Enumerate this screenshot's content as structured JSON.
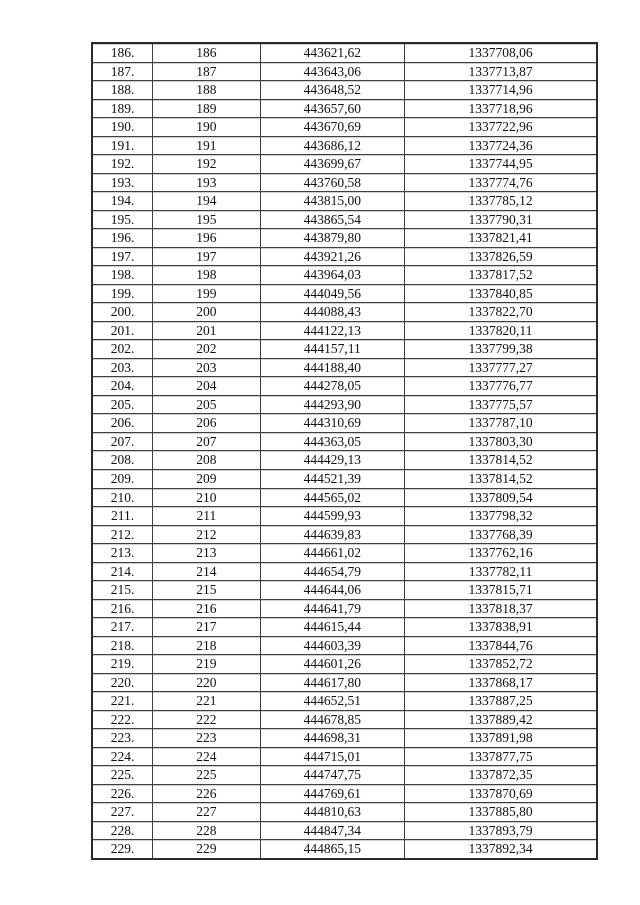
{
  "theme": {
    "background": "#ffffff",
    "text_color": "#111111",
    "border_color": "#3f3f3f"
  },
  "table": {
    "rows": [
      [
        "186.",
        "186",
        "443621,62",
        "1337708,06"
      ],
      [
        "187.",
        "187",
        "443643,06",
        "1337713,87"
      ],
      [
        "188.",
        "188",
        "443648,52",
        "1337714,96"
      ],
      [
        "189.",
        "189",
        "443657,60",
        "1337718,96"
      ],
      [
        "190.",
        "190",
        "443670,69",
        "1337722,96"
      ],
      [
        "191.",
        "191",
        "443686,12",
        "1337724,36"
      ],
      [
        "192.",
        "192",
        "443699,67",
        "1337744,95"
      ],
      [
        "193.",
        "193",
        "443760,58",
        "1337774,76"
      ],
      [
        "194.",
        "194",
        "443815,00",
        "1337785,12"
      ],
      [
        "195.",
        "195",
        "443865,54",
        "1337790,31"
      ],
      [
        "196.",
        "196",
        "443879,80",
        "1337821,41"
      ],
      [
        "197.",
        "197",
        "443921,26",
        "1337826,59"
      ],
      [
        "198.",
        "198",
        "443964,03",
        "1337817,52"
      ],
      [
        "199.",
        "199",
        "444049,56",
        "1337840,85"
      ],
      [
        "200.",
        "200",
        "444088,43",
        "1337822,70"
      ],
      [
        "201.",
        "201",
        "444122,13",
        "1337820,11"
      ],
      [
        "202.",
        "202",
        "444157,11",
        "1337799,38"
      ],
      [
        "203.",
        "203",
        "444188,40",
        "1337777,27"
      ],
      [
        "204.",
        "204",
        "444278,05",
        "1337776,77"
      ],
      [
        "205.",
        "205",
        "444293,90",
        "1337775,57"
      ],
      [
        "206.",
        "206",
        "444310,69",
        "1337787,10"
      ],
      [
        "207.",
        "207",
        "444363,05",
        "1337803,30"
      ],
      [
        "208.",
        "208",
        "444429,13",
        "1337814,52"
      ],
      [
        "209.",
        "209",
        "444521,39",
        "1337814,52"
      ],
      [
        "210.",
        "210",
        "444565,02",
        "1337809,54"
      ],
      [
        "211.",
        "211",
        "444599,93",
        "1337798,32"
      ],
      [
        "212.",
        "212",
        "444639,83",
        "1337768,39"
      ],
      [
        "213.",
        "213",
        "444661,02",
        "1337762,16"
      ],
      [
        "214.",
        "214",
        "444654,79",
        "1337782,11"
      ],
      [
        "215.",
        "215",
        "444644,06",
        "1337815,71"
      ],
      [
        "216.",
        "216",
        "444641,79",
        "1337818,37"
      ],
      [
        "217.",
        "217",
        "444615,44",
        "1337838,91"
      ],
      [
        "218.",
        "218",
        "444603,39",
        "1337844,76"
      ],
      [
        "219.",
        "219",
        "444601,26",
        "1337852,72"
      ],
      [
        "220.",
        "220",
        "444617,80",
        "1337868,17"
      ],
      [
        "221.",
        "221",
        "444652,51",
        "1337887,25"
      ],
      [
        "222.",
        "222",
        "444678,85",
        "1337889,42"
      ],
      [
        "223.",
        "223",
        "444698,31",
        "1337891,98"
      ],
      [
        "224.",
        "224",
        "444715,01",
        "1337877,75"
      ],
      [
        "225.",
        "225",
        "444747,75",
        "1337872,35"
      ],
      [
        "226.",
        "226",
        "444769,61",
        "1337870,69"
      ],
      [
        "227.",
        "227",
        "444810,63",
        "1337885,80"
      ],
      [
        "228.",
        "228",
        "444847,34",
        "1337893,79"
      ],
      [
        "229.",
        "229",
        "444865,15",
        "1337892,34"
      ]
    ]
  }
}
